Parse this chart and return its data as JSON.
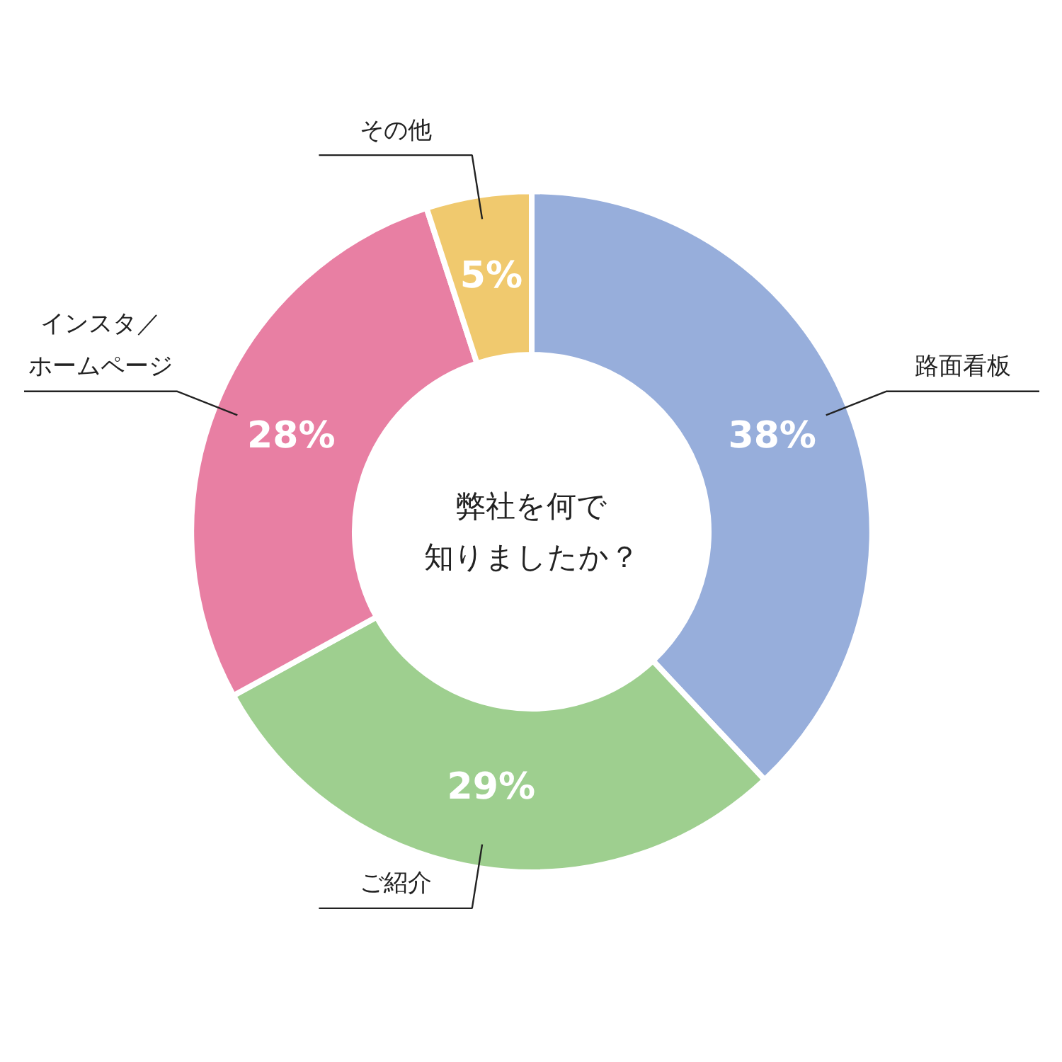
{
  "chart_data": {
    "type": "donut",
    "title": "弊社を何で知りましたか？",
    "categories": [
      "路面看板",
      "ご紹介",
      "インスタ／ホームページ",
      "その他"
    ],
    "values": [
      38,
      29,
      28,
      5
    ],
    "value_labels": [
      "38%",
      "29%",
      "28%",
      "5%"
    ],
    "colors": [
      "#97aedb",
      "#9ecf8f",
      "#e87fa3",
      "#f0c96e"
    ]
  }
}
